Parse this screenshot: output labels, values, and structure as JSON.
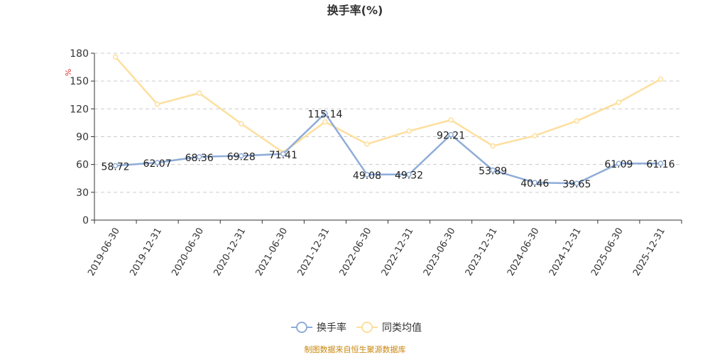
{
  "chart_data": {
    "type": "line",
    "title": "换手率(%)",
    "ylabel": "%",
    "xlabel": "",
    "ylim": [
      0,
      180
    ],
    "yticks": [
      0,
      30,
      60,
      90,
      120,
      150,
      180
    ],
    "grid": true,
    "legend_position": "bottom-center",
    "categories": [
      "2019-06-30",
      "2019-12-31",
      "2020-06-30",
      "2020-12-31",
      "2021-06-30",
      "2021-12-31",
      "2022-06-30",
      "2022-12-31",
      "2023-06-30",
      "2023-12-31",
      "2024-06-30",
      "2024-12-31",
      "2025-06-30",
      "2025-12-31"
    ],
    "series": [
      {
        "name": "换手率",
        "color": "#8eacd8",
        "show_labels": true,
        "values": [
          58.72,
          62.07,
          68.36,
          69.28,
          71.41,
          115.14,
          49.08,
          49.32,
          92.21,
          53.89,
          40.46,
          39.65,
          61.09,
          61.16
        ],
        "labels": [
          "58.72",
          "62.07",
          "68.36",
          "69.28",
          "71.41",
          "115.14",
          "49.08",
          "49.32",
          "92.21",
          "53.89",
          "40.46",
          "39.65",
          "61.09",
          "61.16"
        ]
      },
      {
        "name": "同类均值",
        "color": "#fddf9d",
        "show_labels": false,
        "values": [
          176,
          125,
          137,
          104,
          73,
          106,
          82,
          96,
          108,
          80,
          91,
          107,
          127,
          152
        ]
      }
    ]
  },
  "source": "制图数据来自恒生聚源数据库"
}
